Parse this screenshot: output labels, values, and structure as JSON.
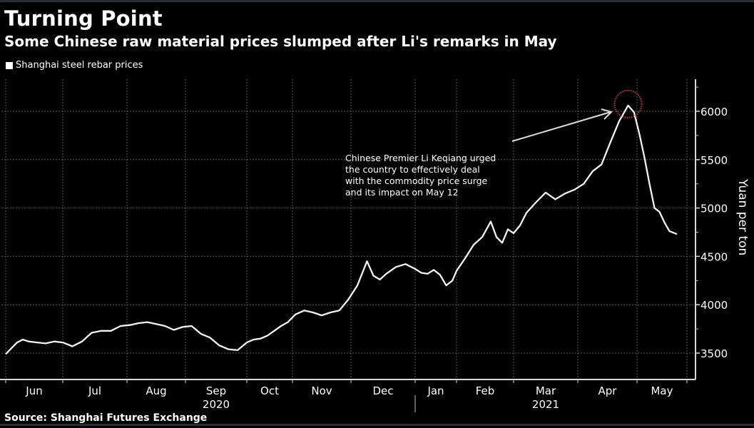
{
  "title": "Turning Point",
  "subtitle": "Some Chinese raw material prices slumped after Li's remarks in May",
  "legend": {
    "label": "Shanghai steel rebar prices",
    "color": "#ffffff"
  },
  "source": "Source: Shanghai Futures Exchange",
  "annotation": {
    "lines": [
      "Chinese Premier Li Keqiang urged",
      "the country to effectively deal",
      "with the commodity price surge",
      "and its impact on May 12"
    ],
    "highlight_color": "#c0394b"
  },
  "chart_data": {
    "type": "line",
    "title": "Turning Point",
    "subtitle": "Some Chinese raw material prices slumped after Li's remarks in May",
    "xlabel": "",
    "ylabel": "Yuan per ton",
    "ylim": [
      3350,
      6300
    ],
    "yticks": [
      3500,
      4000,
      4500,
      5000,
      5500,
      6000
    ],
    "ytick_labels": [
      "3500",
      "4000",
      "4500",
      "5000",
      "5500",
      "6000"
    ],
    "xticks_months": [
      "Jun",
      "Jul",
      "Aug",
      "Sep",
      "Oct",
      "Nov",
      "Dec",
      "Jan",
      "Feb",
      "Mar",
      "Apr",
      "May"
    ],
    "year_labels": [
      {
        "label": "2020",
        "under": "Sep"
      },
      {
        "label": "2021",
        "under": "Mar"
      }
    ],
    "grid": true,
    "legend_position": "top-left",
    "series": [
      {
        "name": "Shanghai steel rebar prices",
        "x_months": [
          0,
          0.1,
          0.2,
          0.3,
          0.4,
          0.55,
          0.7,
          0.85,
          1.0,
          1.15,
          1.3,
          1.45,
          1.6,
          1.75,
          1.9,
          2.05,
          2.2,
          2.35,
          2.5,
          2.65,
          2.8,
          2.95,
          3.1,
          3.25,
          3.4,
          3.55,
          3.7,
          3.85,
          4.0,
          4.15,
          4.3,
          4.45,
          4.6,
          4.75,
          4.9,
          5.05,
          5.2,
          5.35,
          5.5,
          5.65,
          5.8,
          5.95,
          6.1,
          6.25,
          6.35,
          6.45,
          6.55,
          6.7,
          6.85,
          7.0,
          7.15,
          7.3,
          7.45,
          7.6,
          7.75,
          7.9,
          8.0,
          8.15,
          8.3,
          8.45,
          8.6,
          8.7,
          8.8,
          8.9,
          9.0,
          9.1,
          9.2,
          9.35,
          9.5,
          9.65,
          9.8,
          9.95,
          10.1,
          10.25,
          10.4,
          10.55,
          10.7,
          10.85,
          10.95,
          11.05,
          11.15,
          11.25,
          11.35,
          11.45,
          11.55,
          11.65,
          11.8
        ],
        "values": [
          3490,
          3550,
          3610,
          3640,
          3620,
          3610,
          3600,
          3620,
          3610,
          3570,
          3620,
          3710,
          3730,
          3730,
          3780,
          3790,
          3810,
          3820,
          3800,
          3780,
          3740,
          3770,
          3780,
          3700,
          3660,
          3580,
          3540,
          3530,
          3610,
          3640,
          3650,
          3680,
          3730,
          3780,
          3820,
          3900,
          3940,
          3920,
          3890,
          3920,
          3940,
          4050,
          4200,
          4450,
          4300,
          4260,
          4320,
          4390,
          4420,
          4370,
          4330,
          4320,
          4360,
          4310,
          4200,
          4250,
          4350,
          4480,
          4620,
          4700,
          4860,
          4700,
          4640,
          4780,
          4740,
          4820,
          4950,
          5060,
          5160,
          5090,
          5150,
          5190,
          5250,
          5380,
          5450,
          5680,
          5900,
          6060,
          5990,
          5760,
          5520,
          5250,
          5000,
          4960,
          4850,
          4760,
          4730
        ]
      }
    ],
    "annotations": [
      {
        "text": "Chinese Premier Li Keqiang urged the country to effectively deal with the commodity price surge and its impact on May 12",
        "type": "arrow-label"
      },
      {
        "type": "circle-highlight",
        "target": "peak near May 12, 2021 (~6090)"
      }
    ]
  }
}
